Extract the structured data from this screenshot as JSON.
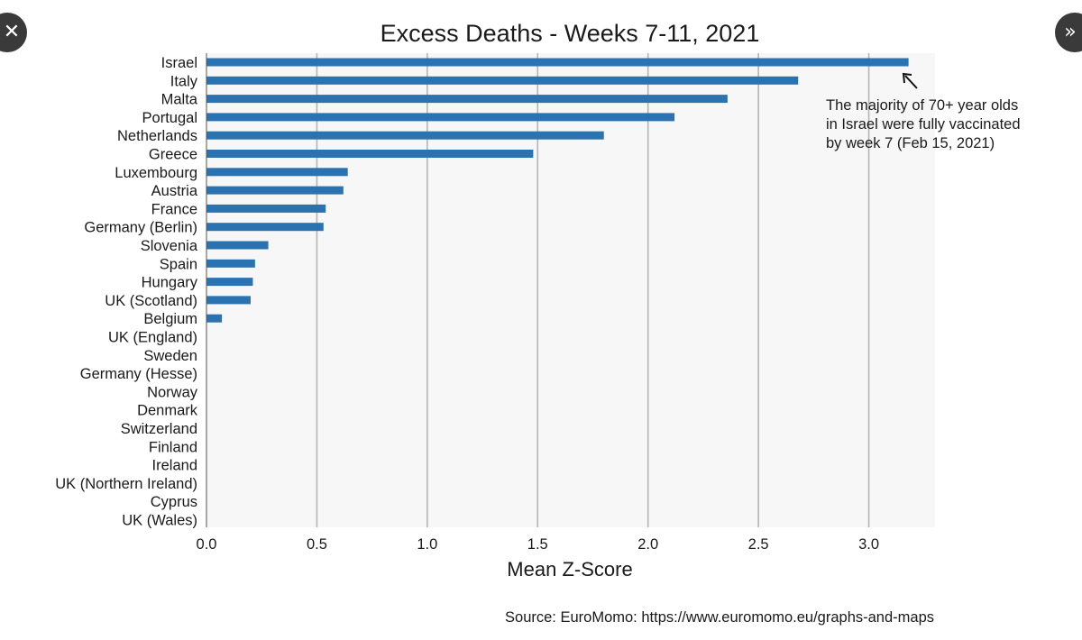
{
  "nav": {
    "close_glyph": "✕",
    "next_glyph": "»"
  },
  "colors": {
    "bar": "#2a72b0",
    "plot_bg": "#f7f7f7",
    "grid": "#b5b5b5",
    "text": "#1a1a1a",
    "nav_bg": "#3a3a3a"
  },
  "chart_data": {
    "type": "bar",
    "orientation": "horizontal",
    "title": "Excess Deaths - Weeks 7-11, 2021",
    "xlabel": "Mean Z-Score",
    "ylabel": "",
    "xlim": [
      0,
      3.3
    ],
    "xticks": [
      "0.0",
      "0.5",
      "1.0",
      "1.5",
      "2.0",
      "2.5",
      "3.0"
    ],
    "xtick_values": [
      0,
      0.5,
      1.0,
      1.5,
      2.0,
      2.5,
      3.0
    ],
    "grid": "vertical",
    "categories": [
      "Israel",
      "Italy",
      "Malta",
      "Portugal",
      "Netherlands",
      "Greece",
      "Luxembourg",
      "Austria",
      "France",
      "Germany (Berlin)",
      "Slovenia",
      "Spain",
      "Hungary",
      "UK (Scotland)",
      "Belgium",
      "UK (England)",
      "Sweden",
      "Germany (Hesse)",
      "Norway",
      "Denmark",
      "Switzerland",
      "Finland",
      "Ireland",
      "UK (Northern Ireland)",
      "Cyprus",
      "UK (Wales)"
    ],
    "values": [
      3.18,
      2.68,
      2.36,
      2.12,
      1.8,
      1.48,
      0.64,
      0.62,
      0.54,
      0.53,
      0.28,
      0.22,
      0.21,
      0.2,
      0.07,
      0,
      0,
      0,
      0,
      0,
      0,
      0,
      0,
      0,
      0,
      0
    ],
    "annotation": {
      "lines": [
        "The majority of 70+ year olds",
        "in Israel were fully vaccinated",
        "by week 7 (Feb 15, 2021)"
      ],
      "points_to": "Israel"
    },
    "source": "Source: EuroMomo: https://www.euromomo.eu/graphs-and-maps"
  }
}
